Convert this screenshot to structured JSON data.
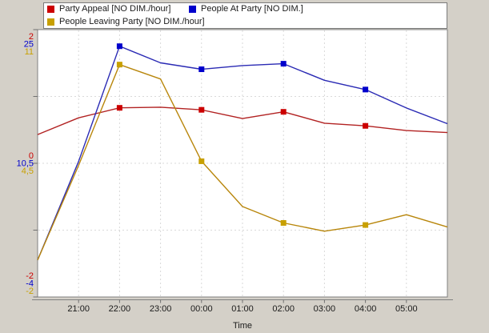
{
  "window": {
    "background_color": "#d4d0c8",
    "plot_background_color": "#ffffff"
  },
  "chart_data": {
    "type": "line",
    "title": "",
    "xlabel": "Time",
    "x_tick_labels": [
      "21:00",
      "22:00",
      "23:00",
      "00:00",
      "01:00",
      "02:00",
      "03:00",
      "04:00",
      "05:00"
    ],
    "x_range_hours": 10,
    "x_first_labeled_hour_index": 1,
    "grid": "dashed-light",
    "legend_position": "top",
    "marker_indices": [
      2,
      4,
      6,
      8
    ],
    "series": [
      {
        "name": "Party Appeal [NO DIM./hour]",
        "color": "#B22222",
        "marker_color": "#CC0000",
        "axis_range": [
          -2,
          2
        ],
        "axis_labels": {
          "top": "2",
          "mid": "0",
          "bottom": "-2"
        },
        "values": [
          0.43,
          0.68,
          0.83,
          0.84,
          0.8,
          0.67,
          0.77,
          0.6,
          0.56,
          0.49,
          0.46
        ]
      },
      {
        "name": "People At Party [NO DIM.]",
        "color": "#2A2AB4",
        "marker_color": "#0000CC",
        "axis_range": [
          -4,
          25
        ],
        "axis_labels": {
          "top": "25",
          "mid": "10,5",
          "bottom": "-4"
        },
        "values": [
          0.0,
          10.7,
          23.2,
          21.4,
          20.7,
          21.1,
          21.3,
          19.5,
          18.5,
          16.5,
          14.8
        ]
      },
      {
        "name": "People Leaving Party [NO DIM./hour]",
        "color": "#B8860B",
        "marker_color": "#C8A000",
        "axis_range": [
          -2,
          11
        ],
        "axis_labels": {
          "top": "11",
          "mid": "4,5",
          "bottom": "-2"
        },
        "values": [
          -0.2,
          4.4,
          9.3,
          8.6,
          4.6,
          2.4,
          1.6,
          1.2,
          1.5,
          2.0,
          1.4
        ]
      }
    ]
  }
}
